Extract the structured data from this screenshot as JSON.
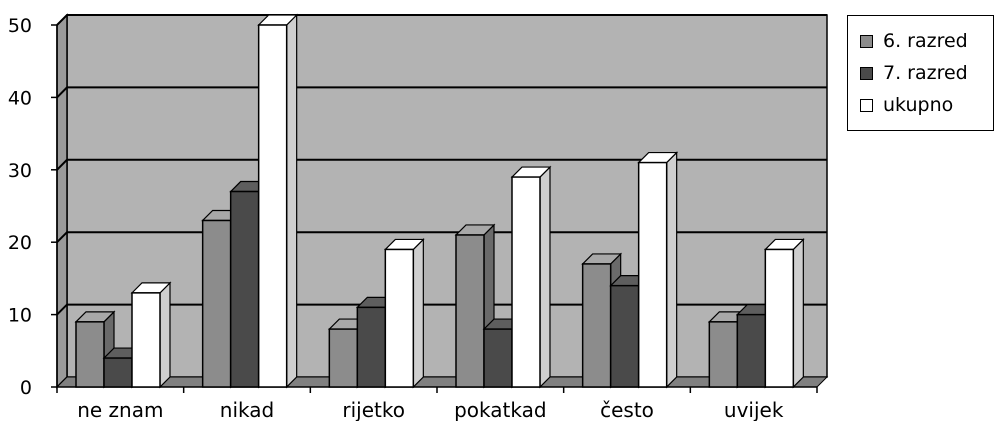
{
  "chart_data": {
    "type": "bar",
    "categories": [
      "ne znam",
      "nikad",
      "rijetko",
      "pokatkad",
      "često",
      "uvijek"
    ],
    "series": [
      {
        "name": "6. razred",
        "values": [
          9,
          23,
          8,
          21,
          17,
          9
        ],
        "color": "#8c8c8c"
      },
      {
        "name": "7. razred",
        "values": [
          4,
          27,
          11,
          8,
          14,
          10
        ],
        "color": "#4a4a4a"
      },
      {
        "name": "ukupno",
        "values": [
          13,
          50,
          19,
          29,
          31,
          19
        ],
        "color": "#ffffff"
      }
    ],
    "ylim": [
      0,
      50
    ],
    "yticks": [
      "0",
      "10",
      "20",
      "30",
      "40",
      "50"
    ],
    "grid": true,
    "legend_position": "top-right",
    "plot_background": "#b3b3b3"
  }
}
